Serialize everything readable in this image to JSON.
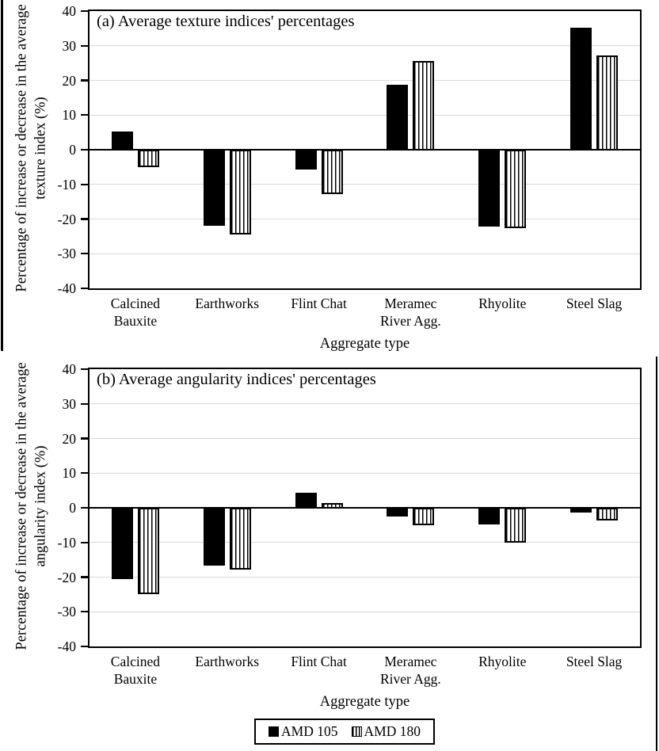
{
  "colors": {
    "axis": "#000000",
    "bar_fill": "#000000",
    "gridline": "#d9d9d9",
    "background": "#ffffff"
  },
  "legend": {
    "items": [
      {
        "label": "AMD 105",
        "pattern": "solid"
      },
      {
        "label": "AMD 180",
        "pattern": "striped"
      }
    ]
  },
  "chart_data": [
    {
      "type": "bar",
      "panel": "a",
      "title": "(a) Average texture indices' percentages",
      "xlabel": "Aggregate type",
      "ylabel": "Percentage of increase or decrease in the average texture index (%)",
      "ylim": [
        -40,
        40
      ],
      "ytick_step": 10,
      "grid": true,
      "legend_position": "shared-bottom",
      "categories": [
        "Calcined Bauxite",
        "Earthworks",
        "Flint Chat",
        "Meramec River Agg.",
        "Rhyolite",
        "Steel Slag"
      ],
      "series": [
        {
          "name": "AMD 105",
          "pattern": "solid",
          "values": [
            5.3,
            -21.7,
            -5.5,
            18.8,
            -21.9,
            35.2
          ]
        },
        {
          "name": "AMD 180",
          "pattern": "striped",
          "values": [
            -4.8,
            -24.3,
            -12.6,
            25.5,
            -22.4,
            27.1
          ]
        }
      ]
    },
    {
      "type": "bar",
      "panel": "b",
      "title": "(b) Average angularity indices' percentages",
      "xlabel": "Aggregate type",
      "ylabel": "Percentage of increase or decrease in the average angularity index (%)",
      "ylim": [
        -40,
        40
      ],
      "ytick_step": 10,
      "grid": true,
      "legend_position": "shared-bottom",
      "categories": [
        "Calcined Bauxite",
        "Earthworks",
        "Flint Chat",
        "Meramec River Agg.",
        "Rhyolite",
        "Steel Slag"
      ],
      "series": [
        {
          "name": "AMD 105",
          "pattern": "solid",
          "values": [
            -20.3,
            -16.5,
            4.3,
            -2.3,
            -4.6,
            -1.2
          ]
        },
        {
          "name": "AMD 180",
          "pattern": "striped",
          "values": [
            -24.7,
            -17.6,
            1.3,
            -4.9,
            -9.8,
            -3.5
          ]
        }
      ]
    }
  ]
}
